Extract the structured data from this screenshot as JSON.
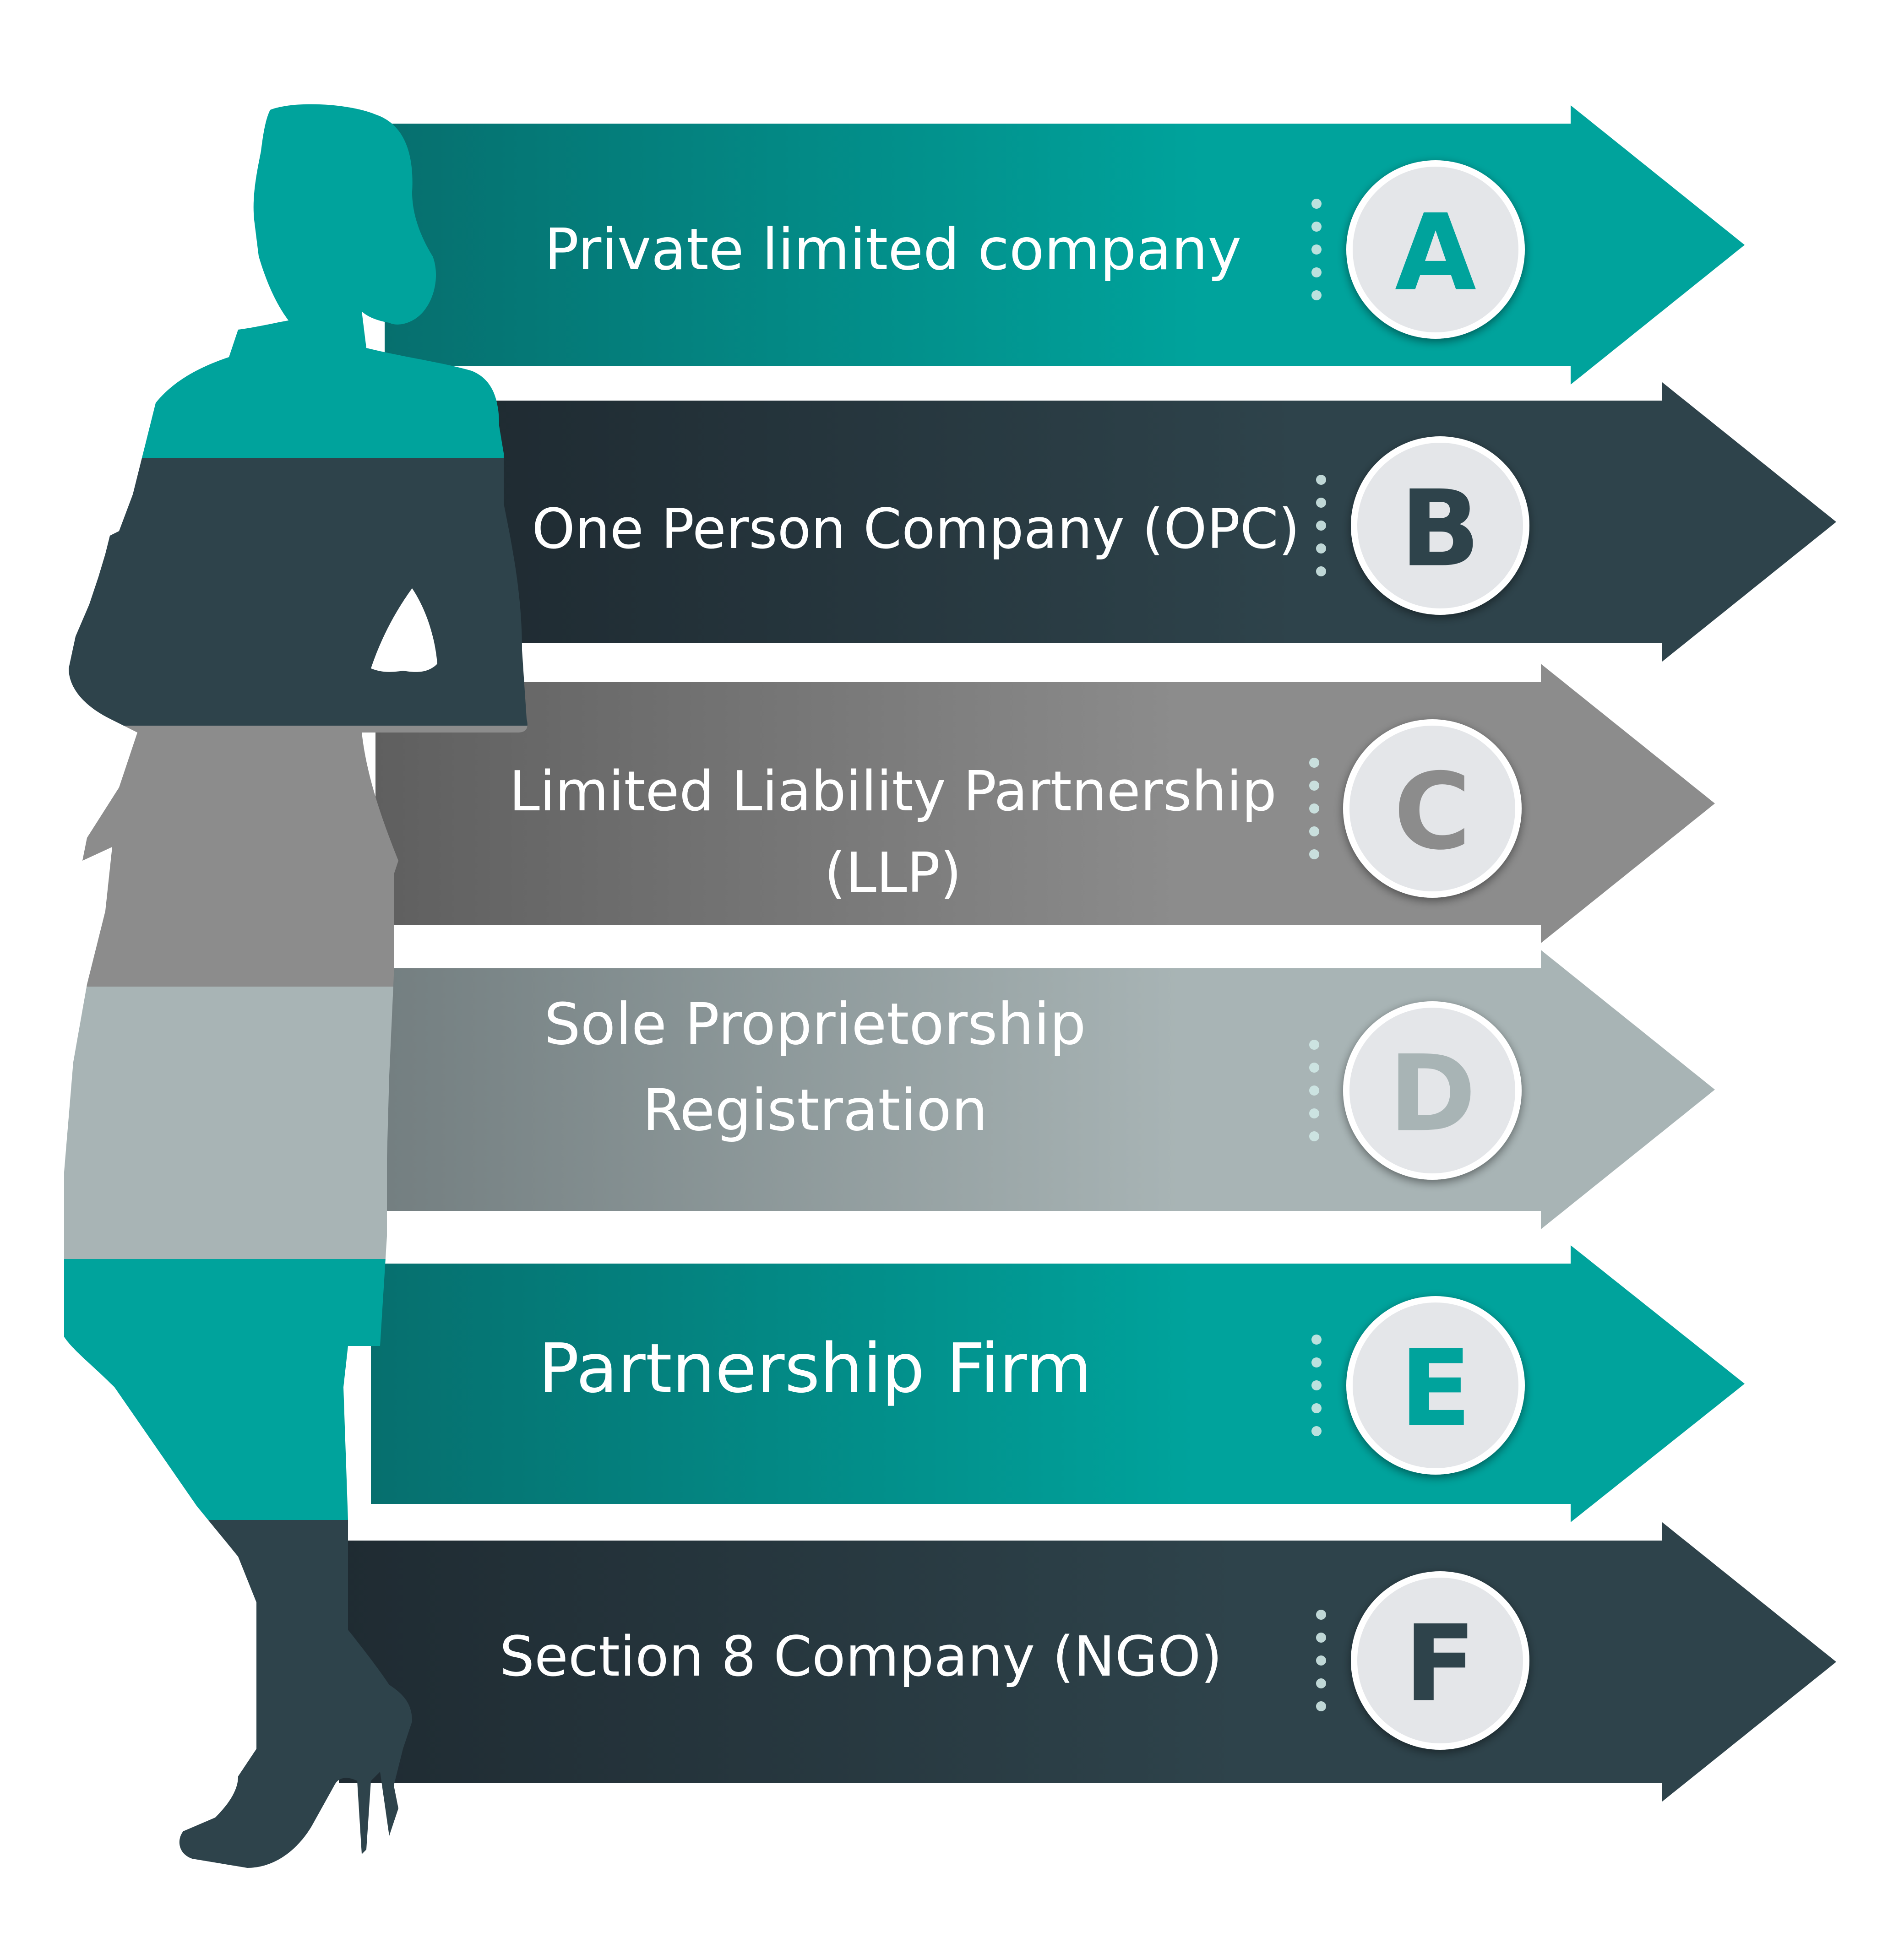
{
  "items": [
    {
      "letter": "A",
      "lines": [
        "Private limited company"
      ],
      "color_dark": "#066f6e",
      "color_light": "#00a39c",
      "letter_color": "#00a39c"
    },
    {
      "letter": "B",
      "lines": [
        "One Person Company (OPC)"
      ],
      "color_dark": "#1f2b32",
      "color_light": "#2e434b",
      "letter_color": "#2e434b"
    },
    {
      "letter": "C",
      "lines": [
        "Limited Liability Partnership",
        "(LLP)"
      ],
      "color_dark": "#5f5f5f",
      "color_light": "#8c8c8c",
      "letter_color": "#8c8c8c"
    },
    {
      "letter": "D",
      "lines": [
        "Sole Proprietorship",
        "Registration"
      ],
      "color_dark": "#737e80",
      "color_light": "#a8b4b5",
      "letter_color": "#a8b4b5"
    },
    {
      "letter": "E",
      "lines": [
        "Partnership Firm"
      ],
      "color_dark": "#066f6e",
      "color_light": "#00a39c",
      "letter_color": "#00a39c"
    },
    {
      "letter": "F",
      "lines": [
        "Section 8 Company (NGO)"
      ],
      "color_dark": "#1f2b32",
      "color_light": "#2e434b",
      "letter_color": "#2e434b"
    }
  ],
  "colors": {
    "teal": "#00a39c",
    "charcoal": "#2e434b",
    "grey": "#8c8c8c",
    "light_grey": "#a8b4b5",
    "circle_fill": "#e4e6e9",
    "dots": "#cfe8e6"
  },
  "icons": {
    "figure": "businesswoman-silhouette-icon"
  }
}
